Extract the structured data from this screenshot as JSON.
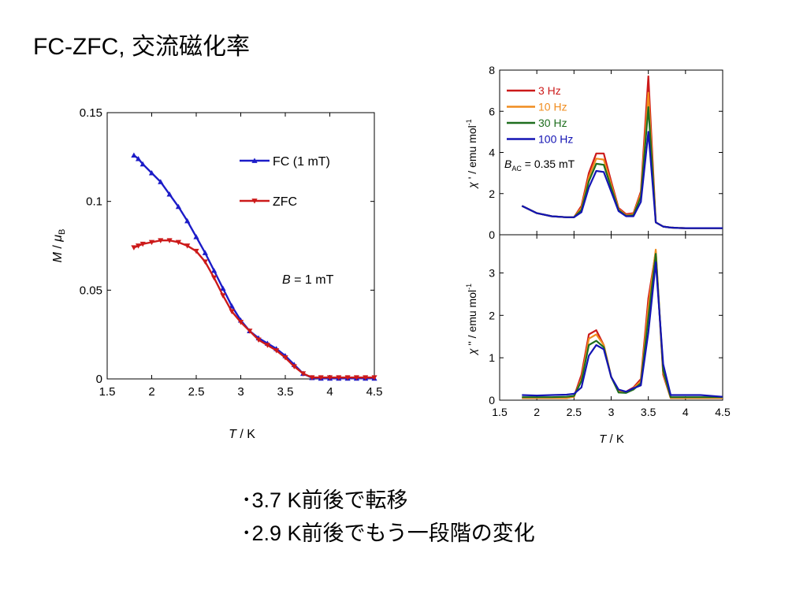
{
  "slide": {
    "title": "FC-ZFC, 交流磁化率"
  },
  "bullets": [
    "･3.7 K前後で転移",
    "･2.9 K前後でもう一段階の変化"
  ],
  "chart_data": [
    {
      "type": "line",
      "x_label_var": "T",
      "x_label_unit": " / K",
      "y_label_var": "M",
      "y_label_unit": " / ",
      "y_label_mu": "μ",
      "y_label_sub": "B",
      "xlim": [
        1.5,
        4.5
      ],
      "ylim": [
        0,
        0.15
      ],
      "xticks": [
        "1.5",
        "2",
        "2.5",
        "3",
        "3.5",
        "4",
        "4.5"
      ],
      "yticks": [
        "0",
        "0.05",
        "0.1",
        "0.15"
      ],
      "annotation_var": "B",
      "annotation_rest": " = 1 mT",
      "legend_position": "top-right",
      "series": [
        {
          "name": "FC (1 mT)",
          "color": "#1c1cc8",
          "marker": "triangle-up",
          "x": [
            1.8,
            1.85,
            1.9,
            2.0,
            2.1,
            2.2,
            2.3,
            2.4,
            2.5,
            2.6,
            2.7,
            2.8,
            2.9,
            3.0,
            3.1,
            3.2,
            3.3,
            3.4,
            3.5,
            3.6,
            3.7,
            3.8,
            3.9,
            4.0,
            4.1,
            4.2,
            4.3,
            4.4,
            4.5
          ],
          "y": [
            0.126,
            0.124,
            0.121,
            0.116,
            0.111,
            0.104,
            0.097,
            0.089,
            0.08,
            0.071,
            0.061,
            0.051,
            0.041,
            0.033,
            0.027,
            0.023,
            0.02,
            0.017,
            0.013,
            0.008,
            0.003,
            0.0006,
            0.0003,
            0.0003,
            0.0003,
            0.0003,
            0.0003,
            0.0003,
            0.0003
          ]
        },
        {
          "name": "ZFC",
          "color": "#cc1a1a",
          "marker": "triangle-down",
          "x": [
            1.8,
            1.85,
            1.9,
            2.0,
            2.1,
            2.2,
            2.3,
            2.4,
            2.5,
            2.6,
            2.7,
            2.8,
            2.9,
            3.0,
            3.1,
            3.2,
            3.3,
            3.4,
            3.5,
            3.6,
            3.7,
            3.8,
            3.9,
            4.0,
            4.1,
            4.2,
            4.3,
            4.4,
            4.5
          ],
          "y": [
            0.074,
            0.075,
            0.076,
            0.077,
            0.078,
            0.078,
            0.077,
            0.075,
            0.072,
            0.066,
            0.057,
            0.047,
            0.038,
            0.032,
            0.027,
            0.022,
            0.019,
            0.016,
            0.012,
            0.007,
            0.003,
            0.0008,
            0.0008,
            0.0008,
            0.0008,
            0.0008,
            0.0008,
            0.0008,
            0.0008
          ]
        }
      ]
    },
    {
      "type": "line",
      "y_label_var": "χ",
      "y_label_prime": " ' ",
      "y_label_unit": "/ emu mol",
      "y_label_sup": "-1",
      "xlim": [
        1.5,
        4.5
      ],
      "ylim": [
        0,
        8
      ],
      "yticks": [
        "0",
        "2",
        "4",
        "6",
        "8"
      ],
      "annotation_var": "B",
      "annotation_sub": "AC",
      "annotation_rest": " = 0.35 mT",
      "legend_position": "top-left",
      "x": [
        1.8,
        2.0,
        2.2,
        2.4,
        2.5,
        2.6,
        2.7,
        2.8,
        2.9,
        3.0,
        3.1,
        3.2,
        3.3,
        3.4,
        3.5,
        3.6,
        3.7,
        3.8,
        3.9,
        4.0,
        4.2,
        4.5
      ],
      "series": [
        {
          "name": "3 Hz",
          "color": "#cc1a1a",
          "values": [
            1.4,
            1.05,
            0.9,
            0.85,
            0.85,
            1.4,
            3.0,
            3.95,
            3.95,
            2.6,
            1.3,
            1.0,
            1.05,
            2.1,
            7.7,
            0.6,
            0.4,
            0.35,
            0.33,
            0.32,
            0.32,
            0.32
          ]
        },
        {
          "name": "10 Hz",
          "color": "#f08c1e",
          "values": [
            1.4,
            1.05,
            0.9,
            0.85,
            0.85,
            1.3,
            2.8,
            3.7,
            3.65,
            2.45,
            1.25,
            0.95,
            1.0,
            2.0,
            6.9,
            0.6,
            0.4,
            0.35,
            0.33,
            0.32,
            0.32,
            0.32
          ]
        },
        {
          "name": "30 Hz",
          "color": "#1e6e1e",
          "values": [
            1.4,
            1.05,
            0.9,
            0.85,
            0.85,
            1.2,
            2.6,
            3.45,
            3.4,
            2.3,
            1.2,
            0.92,
            0.95,
            1.85,
            6.2,
            0.6,
            0.4,
            0.35,
            0.33,
            0.32,
            0.32,
            0.32
          ]
        },
        {
          "name": "100 Hz",
          "color": "#1414b4",
          "values": [
            1.4,
            1.05,
            0.9,
            0.85,
            0.85,
            1.1,
            2.3,
            3.1,
            3.05,
            2.1,
            1.15,
            0.9,
            0.9,
            1.6,
            5.0,
            0.6,
            0.4,
            0.35,
            0.33,
            0.32,
            0.32,
            0.32
          ]
        }
      ]
    },
    {
      "type": "line",
      "y_label_var": "χ",
      "y_label_prime": " '' ",
      "y_label_unit": "/ emu mol",
      "y_label_sup": "-1",
      "x_label_var": "T",
      "x_label_unit": " / K",
      "xlim": [
        1.5,
        4.5
      ],
      "ylim": [
        0,
        3.9
      ],
      "xticks": [
        "1.5",
        "2",
        "2.5",
        "3",
        "3.5",
        "4",
        "4.5"
      ],
      "yticks": [
        "0",
        "1",
        "2",
        "3"
      ],
      "x": [
        1.8,
        2.0,
        2.2,
        2.4,
        2.5,
        2.6,
        2.7,
        2.8,
        2.9,
        3.0,
        3.1,
        3.2,
        3.3,
        3.4,
        3.5,
        3.6,
        3.7,
        3.8,
        3.9,
        4.0,
        4.2,
        4.5
      ],
      "series": [
        {
          "name": "3 Hz",
          "color": "#cc1a1a",
          "values": [
            0.05,
            0.05,
            0.05,
            0.05,
            0.08,
            0.6,
            1.55,
            1.65,
            1.3,
            0.55,
            0.22,
            0.2,
            0.3,
            0.5,
            2.4,
            3.5,
            0.6,
            0.05,
            0.05,
            0.05,
            0.05,
            0.05
          ]
        },
        {
          "name": "10 Hz",
          "color": "#f08c1e",
          "values": [
            0.05,
            0.05,
            0.05,
            0.05,
            0.08,
            0.5,
            1.45,
            1.55,
            1.3,
            0.55,
            0.2,
            0.18,
            0.28,
            0.45,
            2.2,
            3.55,
            0.65,
            0.05,
            0.05,
            0.05,
            0.05,
            0.05
          ]
        },
        {
          "name": "30 Hz",
          "color": "#1e6e1e",
          "values": [
            0.07,
            0.07,
            0.07,
            0.08,
            0.1,
            0.45,
            1.3,
            1.4,
            1.25,
            0.55,
            0.18,
            0.17,
            0.25,
            0.4,
            1.95,
            3.45,
            0.7,
            0.07,
            0.07,
            0.07,
            0.07,
            0.07
          ]
        },
        {
          "name": "100 Hz",
          "color": "#1414b4",
          "values": [
            0.12,
            0.11,
            0.12,
            0.13,
            0.15,
            0.3,
            1.05,
            1.3,
            1.2,
            0.55,
            0.25,
            0.2,
            0.28,
            0.35,
            1.6,
            3.25,
            0.85,
            0.12,
            0.12,
            0.12,
            0.12,
            0.08
          ]
        }
      ]
    }
  ]
}
